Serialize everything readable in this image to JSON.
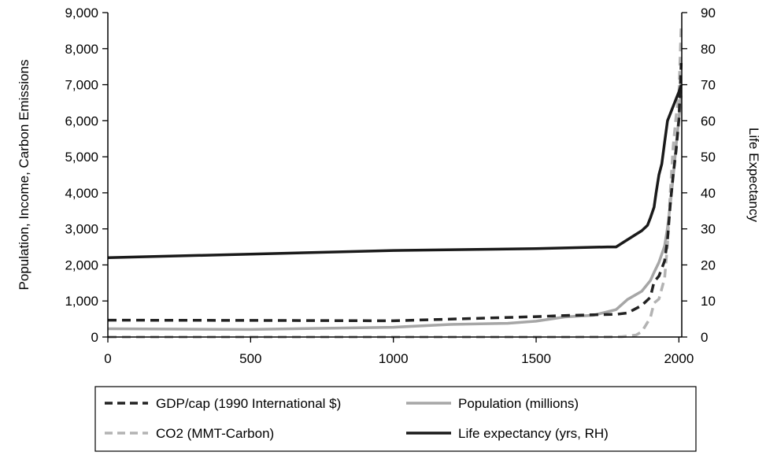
{
  "chart_data": {
    "type": "line",
    "title": "",
    "xlabel": "",
    "ylabel": "Population, Income, Carbon Emissions",
    "y2label": "Life Expectancy",
    "xlim": [
      0,
      2010
    ],
    "ylim": [
      0,
      9000
    ],
    "y2lim": [
      0,
      90
    ],
    "x_ticks": [
      0,
      500,
      1000,
      1500,
      2000
    ],
    "x_tick_labels": [
      "0",
      "500",
      "1000",
      "1500",
      "2000"
    ],
    "y_ticks": [
      0,
      1000,
      2000,
      3000,
      4000,
      5000,
      6000,
      7000,
      8000,
      9000
    ],
    "y_tick_labels": [
      "0",
      "1,000",
      "2,000",
      "3,000",
      "4,000",
      "5,000",
      "6,000",
      "7,000",
      "8,000",
      "9,000"
    ],
    "y2_ticks": [
      0,
      10,
      20,
      30,
      40,
      50,
      60,
      70,
      80,
      90
    ],
    "y2_tick_labels": [
      "0",
      "10",
      "20",
      "30",
      "40",
      "50",
      "60",
      "70",
      "80",
      "90"
    ],
    "grid": false,
    "legend_position": "bottom",
    "series": [
      {
        "name": "GDP/cap (1990 International $)",
        "color": "#222222",
        "dash": "dashed",
        "axis": "left",
        "x": [
          0,
          500,
          1000,
          1500,
          1600,
          1700,
          1780,
          1820,
          1870,
          1900,
          1913,
          1930,
          1950,
          1960,
          1970,
          1980,
          1990,
          2000,
          2008
        ],
        "y": [
          467,
          460,
          450,
          566,
          596,
          616,
          630,
          667,
          875,
          1100,
          1530,
          1690,
          2111,
          2700,
          3700,
          4500,
          5150,
          6050,
          7600
        ]
      },
      {
        "name": "Population (millions)",
        "color": "#a6a6a6",
        "dash": "solid",
        "axis": "left",
        "x": [
          0,
          500,
          1000,
          1200,
          1400,
          1500,
          1600,
          1700,
          1780,
          1820,
          1870,
          1900,
          1913,
          1930,
          1950,
          1960,
          1970,
          1980,
          1990,
          2000,
          2008
        ],
        "y": [
          230,
          210,
          270,
          350,
          380,
          438,
          556,
          603,
          760,
          1041,
          1270,
          1563,
          1791,
          2070,
          2525,
          3030,
          3700,
          4440,
          5290,
          6070,
          6700
        ]
      },
      {
        "name": "CO2 (MMT-Carbon)",
        "color": "#b3b3b3",
        "dash": "dashed",
        "axis": "left",
        "x": [
          0,
          500,
          1000,
          1500,
          1750,
          1800,
          1850,
          1870,
          1900,
          1913,
          1930,
          1950,
          1960,
          1970,
          1980,
          1990,
          2000,
          2008
        ],
        "y": [
          0,
          0,
          0,
          0,
          3,
          8,
          54,
          147,
          534,
          943,
          1053,
          1630,
          2577,
          4053,
          5300,
          6100,
          6750,
          8700
        ]
      },
      {
        "name": "Life expectancy (yrs, RH)",
        "color": "#1a1a1a",
        "dash": "solid",
        "axis": "right",
        "x": [
          0,
          500,
          1000,
          1500,
          1750,
          1780,
          1800,
          1820,
          1850,
          1870,
          1890,
          1900,
          1913,
          1920,
          1930,
          1940,
          1950,
          1960,
          1970,
          1980,
          1990,
          2000,
          2008
        ],
        "y": [
          22,
          23,
          24,
          24.5,
          25,
          25,
          26,
          27,
          28.5,
          29.5,
          31,
          33,
          36,
          40,
          45,
          48,
          54,
          60,
          62,
          64,
          66,
          68,
          70
        ]
      }
    ]
  }
}
